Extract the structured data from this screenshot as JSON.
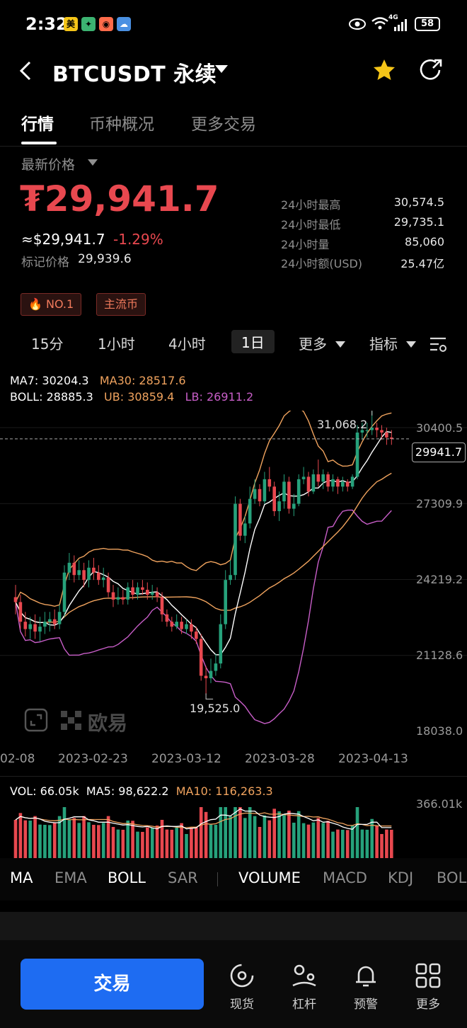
{
  "status_bar": {
    "time": "2:32",
    "battery": "58",
    "network": "4G"
  },
  "header": {
    "title": "BTCUSDT 永续"
  },
  "tabs": [
    {
      "label": "行情"
    },
    {
      "label": "币种概况"
    },
    {
      "label": "更多交易"
    }
  ],
  "price": {
    "selector_label": "最新价格",
    "last": "₮29,941.7",
    "usd": "≈$29,941.7",
    "change": "-1.29%",
    "mark_label": "标记价格",
    "mark_value": "29,939.6"
  },
  "stats": [
    {
      "label": "24小时最高",
      "value": "30,574.5"
    },
    {
      "label": "24小时最低",
      "value": "29,735.1"
    },
    {
      "label": "24小时量",
      "value": "85,060"
    },
    {
      "label": "24小时额(USD)",
      "value": "25.47亿"
    }
  ],
  "badges": [
    {
      "label": "NO.1"
    },
    {
      "label": "主流币"
    }
  ],
  "intervals": [
    {
      "label": "15分"
    },
    {
      "label": "1小时"
    },
    {
      "label": "4小时"
    },
    {
      "label": "1日"
    },
    {
      "label": "更多"
    },
    {
      "label": "指标"
    }
  ],
  "indicators": {
    "ma7": "MA7: 30204.3",
    "ma30": "MA30: 28517.6",
    "boll": "BOLL: 28885.3",
    "ub": "UB: 30859.4",
    "lb": "LB: 26911.2"
  },
  "watermark": "欧易",
  "chart_data": {
    "type": "candlestick",
    "y_ticks": [
      "30400.5",
      "27309.9",
      "24219.2",
      "21128.6",
      "18038.0"
    ],
    "x_ticks": [
      "02-08",
      "2023-02-23",
      "2023-03-12",
      "2023-03-28",
      "2023-04-13"
    ],
    "ylim": [
      18038.0,
      31500
    ],
    "current_price": "29941.7",
    "high_marker": "31,068.2",
    "low_marker": "19,525.0",
    "ohlc": [
      [
        23500,
        23300,
        24000,
        22800
      ],
      [
        23300,
        22500,
        23600,
        22200
      ],
      [
        22500,
        22200,
        22900,
        21900
      ],
      [
        22200,
        22400,
        22700,
        21800
      ],
      [
        22400,
        22100,
        22800,
        21800
      ],
      [
        22100,
        22300,
        22700,
        21700
      ],
      [
        22300,
        22500,
        22900,
        22000
      ],
      [
        22500,
        22600,
        22900,
        22100
      ],
      [
        22600,
        22400,
        23000,
        22200
      ],
      [
        22400,
        22900,
        23200,
        22200
      ],
      [
        22900,
        24500,
        24800,
        22700
      ],
      [
        24500,
        24900,
        25300,
        24200
      ],
      [
        24900,
        24400,
        25200,
        24100
      ],
      [
        24400,
        24600,
        25000,
        24200
      ],
      [
        24600,
        24200,
        24900,
        23900
      ],
      [
        24200,
        24700,
        25000,
        23900
      ],
      [
        24700,
        24500,
        25100,
        24200
      ],
      [
        24500,
        24200,
        24800,
        24000
      ],
      [
        24200,
        24300,
        24700,
        23900
      ],
      [
        24300,
        23700,
        24500,
        23500
      ],
      [
        23700,
        23400,
        24000,
        23100
      ],
      [
        23400,
        23500,
        23900,
        23200
      ],
      [
        23500,
        23400,
        23800,
        23200
      ],
      [
        23400,
        23900,
        24100,
        23200
      ],
      [
        23900,
        23600,
        24200,
        23400
      ],
      [
        23600,
        23900,
        24100,
        23400
      ],
      [
        23900,
        23800,
        24200,
        23600
      ],
      [
        23800,
        23600,
        24100,
        23400
      ],
      [
        23600,
        23700,
        24000,
        23400
      ],
      [
        23700,
        23500,
        23900,
        23300
      ],
      [
        23500,
        22800,
        23700,
        22500
      ],
      [
        22800,
        22500,
        23000,
        22300
      ],
      [
        22500,
        22300,
        22700,
        22100
      ],
      [
        22300,
        22500,
        22800,
        22200
      ],
      [
        22500,
        22200,
        22700,
        22000
      ],
      [
        22200,
        22400,
        22600,
        22000
      ],
      [
        22400,
        22100,
        22600,
        21800
      ],
      [
        22100,
        21800,
        22300,
        21600
      ],
      [
        21800,
        20300,
        22000,
        20100
      ],
      [
        20300,
        20200,
        20700,
        19525
      ],
      [
        20200,
        20500,
        21000,
        20000
      ],
      [
        20500,
        20800,
        21200,
        20300
      ],
      [
        20800,
        22400,
        22800,
        20600
      ],
      [
        22400,
        24200,
        24600,
        22200
      ],
      [
        24200,
        24400,
        25000,
        24000
      ],
      [
        24400,
        27300,
        27600,
        24200
      ],
      [
        27300,
        26000,
        27500,
        25800
      ],
      [
        26000,
        26500,
        26800,
        25700
      ],
      [
        26500,
        27500,
        28000,
        26300
      ],
      [
        27500,
        27900,
        28300,
        27300
      ],
      [
        27900,
        27400,
        28100,
        27200
      ],
      [
        27400,
        28300,
        28600,
        27300
      ],
      [
        28300,
        28000,
        28800,
        27800
      ],
      [
        28000,
        27000,
        28200,
        26800
      ],
      [
        27000,
        27400,
        27800,
        26600
      ],
      [
        27400,
        28200,
        28500,
        27100
      ],
      [
        28200,
        27100,
        28400,
        26900
      ],
      [
        27100,
        27300,
        27700,
        26800
      ],
      [
        27300,
        28300,
        28500,
        27200
      ],
      [
        28300,
        28400,
        28800,
        28100
      ],
      [
        28400,
        27800,
        28600,
        27600
      ],
      [
        27800,
        28500,
        28700,
        27700
      ],
      [
        28500,
        28200,
        29100,
        28000
      ],
      [
        28200,
        28500,
        28700,
        27900
      ],
      [
        28500,
        28000,
        28600,
        27800
      ],
      [
        28000,
        28300,
        28500,
        27800
      ],
      [
        28300,
        28000,
        28400,
        27700
      ],
      [
        28000,
        28200,
        28400,
        27800
      ],
      [
        28200,
        28000,
        28300,
        27800
      ],
      [
        28000,
        28400,
        28500,
        27900
      ],
      [
        28400,
        30200,
        30500,
        28300
      ],
      [
        30200,
        30300,
        30600,
        29900
      ],
      [
        30300,
        30300,
        30600,
        30000
      ],
      [
        30300,
        30400,
        31068.2,
        30100
      ],
      [
        30400,
        30300,
        30600,
        30000
      ],
      [
        30300,
        30200,
        30500,
        29900
      ],
      [
        30200,
        30000,
        30400,
        29700
      ],
      [
        30000,
        29941.7,
        30300,
        29700
      ]
    ],
    "volume": {
      "label": "VOL: 66.05k",
      "ma5": "MA5: 98,622.2",
      "ma10": "MA10: 116,263.3",
      "max_tick": "366.01k"
    }
  },
  "indicator_tabs": [
    "MA",
    "EMA",
    "BOLL",
    "SAR",
    "VOLUME",
    "MACD",
    "KDJ",
    "BOLL"
  ],
  "trade_button": "交易",
  "bottom_nav": [
    {
      "label": "现货"
    },
    {
      "label": "杠杆"
    },
    {
      "label": "预警"
    },
    {
      "label": "更多"
    }
  ],
  "colors": {
    "up": "#26a17b",
    "down": "#e8484f",
    "ma7": "#ffffff",
    "ma30": "#f0a35e",
    "boll_band": "#f0a35e",
    "lb": "#c85ec8",
    "primary": "#1e6cf2"
  }
}
